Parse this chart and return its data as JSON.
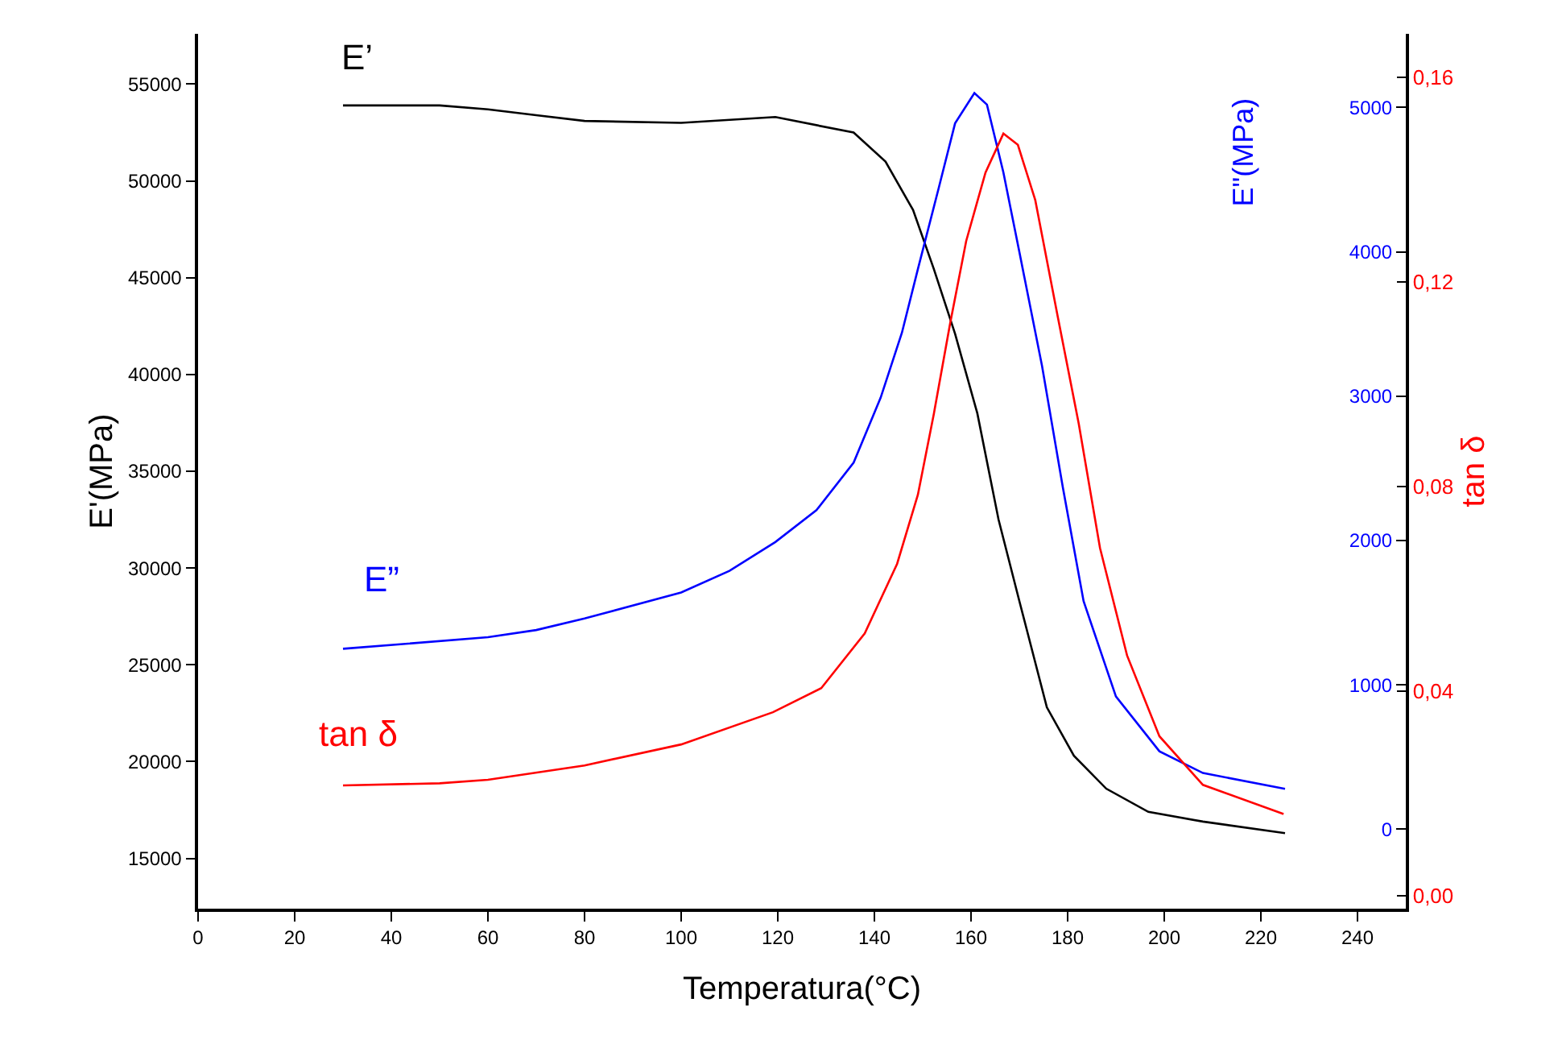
{
  "chart_data": {
    "type": "line",
    "xlabel": "Temperatura(°C)",
    "ylabel": "E'(MPa)",
    "y2label": "E\"(MPa)",
    "y3label": "tan δ",
    "xlim": [
      0,
      250
    ],
    "xticks": [
      0,
      20,
      40,
      60,
      80,
      100,
      120,
      140,
      160,
      180,
      200,
      220,
      240
    ],
    "ylim": [
      12400,
      57600
    ],
    "yticks": [
      15000,
      20000,
      25000,
      30000,
      35000,
      40000,
      45000,
      50000,
      55000
    ],
    "y2lim": [
      -550,
      5510
    ],
    "y2ticks": [
      0,
      1000,
      2000,
      3000,
      4000,
      5000
    ],
    "y3lim": [
      -0.0025,
      0.1685
    ],
    "y3ticks": [
      {
        "value": 0,
        "label": "0,00"
      },
      {
        "value": 0.04,
        "label": "0,04"
      },
      {
        "value": 0.08,
        "label": "0,08"
      },
      {
        "value": 0.12,
        "label": "0,12"
      },
      {
        "value": 0.16,
        "label": "0,16"
      }
    ],
    "grid": false,
    "legend": false,
    "line_style": "solid",
    "marker": "none",
    "series": [
      {
        "name": "E’",
        "color": "#000000",
        "x": [
          30,
          50,
          60,
          70,
          80,
          100,
          119.5,
          135.7,
          142.3,
          148,
          152.3,
          156.7,
          161.3,
          165.7,
          170,
          175.7,
          181.3,
          188,
          196.7,
          208,
          225
        ],
        "values": [
          53900,
          53900,
          53700,
          53400,
          53100,
          53000,
          53300,
          52500,
          51000,
          48500,
          45450,
          42100,
          38000,
          32500,
          28300,
          22800,
          20300,
          18600,
          17400,
          16900,
          16300
        ]
      },
      {
        "name": "E”",
        "color": "#0000ff",
        "axis": "y2",
        "x": [
          30,
          60,
          70,
          80,
          100,
          110,
          119.5,
          128,
          135.7,
          141.3,
          145.7,
          149,
          153.3,
          156.7,
          160.7,
          163.3,
          166.7,
          170,
          174.7,
          179,
          183.3,
          190,
          199,
          208,
          225
        ],
        "values": [
          1250,
          1330,
          1380,
          1460,
          1640,
          1790,
          1990,
          2210,
          2540,
          2990,
          3440,
          3880,
          4440,
          4890,
          5100,
          5020,
          4550,
          4000,
          3210,
          2370,
          1580,
          920,
          540,
          390,
          280
        ]
      },
      {
        "name": "tan δ",
        "color": "#ff0000",
        "axis": "y3",
        "x": [
          30,
          50,
          60,
          80,
          100,
          119,
          129,
          138,
          144.7,
          149,
          152.3,
          155.7,
          159,
          163,
          166.7,
          169.7,
          173.3,
          178,
          182.3,
          186.7,
          192.3,
          199,
          208,
          224.7
        ],
        "values": [
          0.0216,
          0.022,
          0.0227,
          0.0255,
          0.0296,
          0.0359,
          0.0406,
          0.0513,
          0.0649,
          0.0784,
          0.0942,
          0.112,
          0.128,
          0.1414,
          0.149,
          0.1468,
          0.136,
          0.113,
          0.0923,
          0.068,
          0.047,
          0.0312,
          0.0217,
          0.016
        ]
      }
    ]
  }
}
